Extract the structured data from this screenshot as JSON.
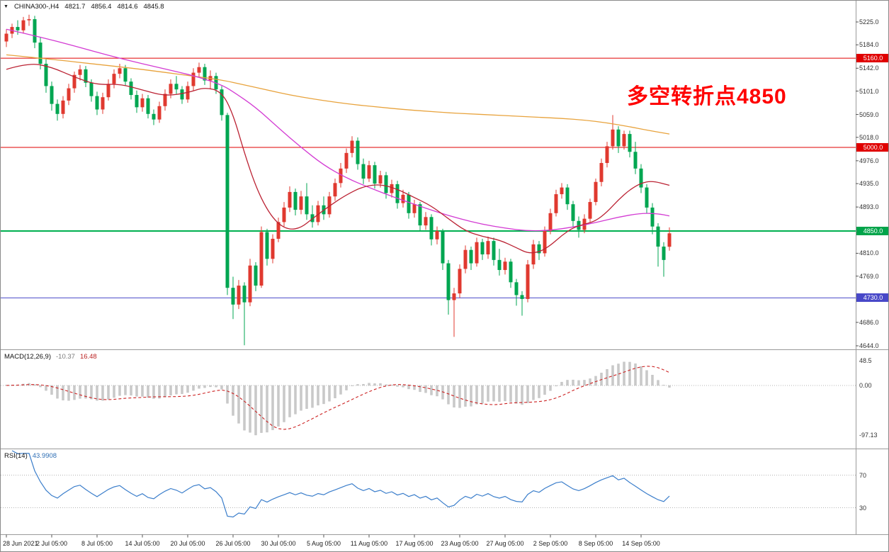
{
  "symbol_bar": {
    "symbol": "CHINA300-,H4",
    "open": "4821.7",
    "high": "4856.4",
    "low": "4814.6",
    "close": "4845.8"
  },
  "annotation": {
    "text": "多空转折点4850",
    "color": "#ff0000"
  },
  "indicators_text": {
    "macd_label": "MACD(12,26,9)",
    "macd_main": "-10.37",
    "macd_signal": "16.48",
    "rsi_label": "RSI(14)",
    "rsi_value": "43.9908"
  },
  "colors": {
    "candle_up": "#e0392f",
    "candle_down": "#00a651",
    "ma_fast": "#bb2233",
    "ma_mid": "#d33bd3",
    "ma_slow": "#e8a33d",
    "macd_hist": "#c9c9c9",
    "macd_signal": "#cc2222",
    "rsi_line": "#3b7ecb",
    "line_red": "#e00000",
    "line_green": "#00b050",
    "line_blue": "#4848c8",
    "axis_divider": "#9a9a9a"
  },
  "chart_data": {
    "type": "candlestick",
    "title": "CHINA300-,H4",
    "timeframe": "H4",
    "y_axis": {
      "range": [
        4644,
        5238
      ],
      "ticks": [
        {
          "v": 5225,
          "t": "5225.0"
        },
        {
          "v": 5184,
          "t": "5184.0"
        },
        {
          "v": 5142,
          "t": "5142.0"
        },
        {
          "v": 5101,
          "t": "5101.0"
        },
        {
          "v": 5059,
          "t": "5059.0"
        },
        {
          "v": 5018,
          "t": "5018.0"
        },
        {
          "v": 4976,
          "t": "4976.0"
        },
        {
          "v": 4935,
          "t": "4935.0"
        },
        {
          "v": 4893,
          "t": "4893.0"
        },
        {
          "v": 4810,
          "t": "4810.0"
        },
        {
          "v": 4769,
          "t": "4769.0"
        },
        {
          "v": 4686,
          "t": "4686.0"
        },
        {
          "v": 4644,
          "t": "4644.0"
        }
      ]
    },
    "x_axis": {
      "labels": [
        {
          "bar": 0,
          "t": "28 Jun 2021"
        },
        {
          "bar": 8,
          "t": "2 Jul 05:00"
        },
        {
          "bar": 16,
          "t": "8 Jul 05:00"
        },
        {
          "bar": 24,
          "t": "14 Jul 05:00"
        },
        {
          "bar": 32,
          "t": "20 Jul 05:00"
        },
        {
          "bar": 40,
          "t": "26 Jul 05:00"
        },
        {
          "bar": 48,
          "t": "30 Jul 05:00"
        },
        {
          "bar": 56,
          "t": "5 Aug 05:00"
        },
        {
          "bar": 64,
          "t": "11 Aug 05:00"
        },
        {
          "bar": 72,
          "t": "17 Aug 05:00"
        },
        {
          "bar": 80,
          "t": "23 Aug 05:00"
        },
        {
          "bar": 88,
          "t": "27 Aug 05:00"
        },
        {
          "bar": 96,
          "t": "2 Sep 05:00"
        },
        {
          "bar": 104,
          "t": "8 Sep 05:00"
        },
        {
          "bar": 112,
          "t": "14 Sep 05:00"
        }
      ]
    },
    "ohlc": [
      [
        5190,
        5212,
        5180,
        5204
      ],
      [
        5204,
        5222,
        5196,
        5216
      ],
      [
        5216,
        5228,
        5202,
        5210
      ],
      [
        5210,
        5234,
        5204,
        5228
      ],
      [
        5228,
        5238,
        5218,
        5230
      ],
      [
        5230,
        5236,
        5178,
        5188
      ],
      [
        5188,
        5198,
        5140,
        5150
      ],
      [
        5150,
        5158,
        5098,
        5110
      ],
      [
        5110,
        5118,
        5066,
        5078
      ],
      [
        5078,
        5086,
        5048,
        5060
      ],
      [
        5060,
        5092,
        5052,
        5084
      ],
      [
        5084,
        5114,
        5076,
        5106
      ],
      [
        5106,
        5136,
        5098,
        5130
      ],
      [
        5130,
        5148,
        5120,
        5140
      ],
      [
        5140,
        5146,
        5108,
        5116
      ],
      [
        5116,
        5122,
        5082,
        5092
      ],
      [
        5092,
        5100,
        5058,
        5068
      ],
      [
        5068,
        5098,
        5060,
        5090
      ],
      [
        5090,
        5122,
        5084,
        5114
      ],
      [
        5114,
        5140,
        5106,
        5132
      ],
      [
        5132,
        5150,
        5124,
        5142
      ],
      [
        5142,
        5148,
        5110,
        5118
      ],
      [
        5118,
        5124,
        5086,
        5094
      ],
      [
        5094,
        5102,
        5062,
        5072
      ],
      [
        5072,
        5096,
        5064,
        5088
      ],
      [
        5088,
        5094,
        5052,
        5060
      ],
      [
        5060,
        5068,
        5040,
        5050
      ],
      [
        5050,
        5082,
        5044,
        5074
      ],
      [
        5074,
        5104,
        5066,
        5096
      ],
      [
        5096,
        5122,
        5088,
        5114
      ],
      [
        5114,
        5128,
        5096,
        5104
      ],
      [
        5104,
        5110,
        5078,
        5086
      ],
      [
        5086,
        5118,
        5080,
        5110
      ],
      [
        5110,
        5142,
        5102,
        5134
      ],
      [
        5134,
        5152,
        5126,
        5144
      ],
      [
        5144,
        5150,
        5112,
        5120
      ],
      [
        5120,
        5138,
        5104,
        5128
      ],
      [
        5128,
        5134,
        5096,
        5104
      ],
      [
        5104,
        5110,
        5048,
        5058
      ],
      [
        5058,
        5062,
        4735,
        4748
      ],
      [
        4748,
        4768,
        4692,
        4718
      ],
      [
        4718,
        4762,
        4710,
        4752
      ],
      [
        4752,
        4758,
        4645,
        4722
      ],
      [
        4722,
        4800,
        4715,
        4788
      ],
      [
        4788,
        4794,
        4742,
        4752
      ],
      [
        4752,
        4858,
        4748,
        4848
      ],
      [
        4848,
        4854,
        4788,
        4800
      ],
      [
        4800,
        4844,
        4792,
        4836
      ],
      [
        4836,
        4874,
        4830,
        4866
      ],
      [
        4866,
        4902,
        4858,
        4892
      ],
      [
        4892,
        4930,
        4884,
        4920
      ],
      [
        4920,
        4926,
        4878,
        4888
      ],
      [
        4888,
        4922,
        4880,
        4912
      ],
      [
        4912,
        4936,
        4870,
        4880
      ],
      [
        4880,
        4896,
        4856,
        4866
      ],
      [
        4866,
        4904,
        4860,
        4896
      ],
      [
        4896,
        4912,
        4870,
        4880
      ],
      [
        4880,
        4920,
        4874,
        4912
      ],
      [
        4912,
        4944,
        4904,
        4936
      ],
      [
        4936,
        4972,
        4928,
        4962
      ],
      [
        4962,
        4998,
        4954,
        4990
      ],
      [
        4990,
        5020,
        4982,
        5012
      ],
      [
        5012,
        5018,
        4960,
        4970
      ],
      [
        4970,
        4980,
        4934,
        4944
      ],
      [
        4944,
        4976,
        4938,
        4968
      ],
      [
        4968,
        4974,
        4926,
        4935
      ],
      [
        4935,
        4958,
        4928,
        4950
      ],
      [
        4950,
        4956,
        4908,
        4918
      ],
      [
        4918,
        4942,
        4910,
        4934
      ],
      [
        4934,
        4940,
        4890,
        4900
      ],
      [
        4900,
        4924,
        4892,
        4915
      ],
      [
        4915,
        4920,
        4872,
        4882
      ],
      [
        4882,
        4906,
        4874,
        4898
      ],
      [
        4898,
        4902,
        4850,
        4860
      ],
      [
        4860,
        4884,
        4852,
        4875
      ],
      [
        4875,
        4880,
        4824,
        4835
      ],
      [
        4835,
        4858,
        4826,
        4850
      ],
      [
        4850,
        4854,
        4780,
        4792
      ],
      [
        4792,
        4798,
        4700,
        4726
      ],
      [
        4726,
        4748,
        4660,
        4738
      ],
      [
        4738,
        4790,
        4730,
        4782
      ],
      [
        4782,
        4824,
        4774,
        4816
      ],
      [
        4816,
        4822,
        4780,
        4792
      ],
      [
        4792,
        4838,
        4786,
        4830
      ],
      [
        4830,
        4836,
        4798,
        4808
      ],
      [
        4808,
        4840,
        4800,
        4832
      ],
      [
        4832,
        4838,
        4788,
        4798
      ],
      [
        4798,
        4818,
        4770,
        4780
      ],
      [
        4780,
        4802,
        4772,
        4795
      ],
      [
        4795,
        4800,
        4748,
        4758
      ],
      [
        4758,
        4764,
        4716,
        4735
      ],
      [
        4735,
        4742,
        4698,
        4728
      ],
      [
        4728,
        4798,
        4722,
        4790
      ],
      [
        4790,
        4834,
        4782,
        4826
      ],
      [
        4826,
        4832,
        4798,
        4810
      ],
      [
        4810,
        4858,
        4804,
        4850
      ],
      [
        4850,
        4890,
        4844,
        4882
      ],
      [
        4882,
        4924,
        4876,
        4916
      ],
      [
        4916,
        4936,
        4908,
        4928
      ],
      [
        4928,
        4934,
        4888,
        4898
      ],
      [
        4898,
        4904,
        4858,
        4868
      ],
      [
        4868,
        4876,
        4838,
        4852
      ],
      [
        4852,
        4880,
        4846,
        4872
      ],
      [
        4872,
        4908,
        4866,
        4902
      ],
      [
        4902,
        4944,
        4896,
        4938
      ],
      [
        4938,
        4980,
        4930,
        4972
      ],
      [
        4972,
        5010,
        4964,
        5002
      ],
      [
        5002,
        5058,
        4996,
        5032
      ],
      [
        5032,
        5038,
        4990,
        5002
      ],
      [
        5002,
        5030,
        4996,
        5024
      ],
      [
        5024,
        5030,
        4982,
        4992
      ],
      [
        4992,
        5010,
        4952,
        4962
      ],
      [
        4962,
        4970,
        4918,
        4928
      ],
      [
        4928,
        4934,
        4882,
        4892
      ],
      [
        4892,
        4900,
        4844,
        4858
      ],
      [
        4858,
        4864,
        4786,
        4822
      ],
      [
        4822,
        4830,
        4768,
        4798
      ],
      [
        4821.7,
        4856.4,
        4814.6,
        4845.8
      ]
    ],
    "overlays": {
      "hlines": [
        {
          "price": 5160,
          "color": "#e00000",
          "width": 1,
          "label": "5160.0",
          "badge": "#e00000"
        },
        {
          "price": 5000,
          "color": "#e00000",
          "width": 1,
          "label": "5000.0",
          "badge": "#e00000"
        },
        {
          "price": 4850,
          "color": "#00b050",
          "width": 2,
          "label": "4850.0",
          "badge": "#00a44a"
        },
        {
          "price": 4730,
          "color": "#4848c8",
          "width": 1,
          "label": "4730.0",
          "badge": "#4848c8"
        }
      ],
      "ma_lines": [
        {
          "name": "ma-slow-orange",
          "color": "#e8a33d",
          "points": [
            [
              0,
              5166
            ],
            [
              8,
              5158
            ],
            [
              16,
              5149
            ],
            [
              24,
              5140
            ],
            [
              32,
              5129
            ],
            [
              38,
              5121
            ],
            [
              42,
              5112
            ],
            [
              46,
              5103
            ],
            [
              50,
              5094
            ],
            [
              54,
              5087
            ],
            [
              58,
              5081
            ],
            [
              62,
              5076
            ],
            [
              66,
              5072
            ],
            [
              70,
              5068
            ],
            [
              74,
              5065
            ],
            [
              78,
              5062
            ],
            [
              82,
              5060
            ],
            [
              86,
              5058
            ],
            [
              90,
              5056
            ],
            [
              94,
              5054
            ],
            [
              98,
              5052
            ],
            [
              102,
              5049
            ],
            [
              106,
              5044
            ],
            [
              110,
              5037
            ],
            [
              113,
              5031
            ],
            [
              117,
              5024
            ]
          ]
        },
        {
          "name": "ma-mid-magenta",
          "color": "#d33bd3",
          "points": [
            [
              0,
              5212
            ],
            [
              6,
              5198
            ],
            [
              12,
              5182
            ],
            [
              18,
              5165
            ],
            [
              24,
              5150
            ],
            [
              30,
              5136
            ],
            [
              34,
              5126
            ],
            [
              38,
              5112
            ],
            [
              40,
              5100
            ],
            [
              44,
              5072
            ],
            [
              48,
              5035
            ],
            [
              52,
              5000
            ],
            [
              56,
              4968
            ],
            [
              60,
              4945
            ],
            [
              64,
              4928
            ],
            [
              68,
              4912
            ],
            [
              72,
              4898
            ],
            [
              76,
              4884
            ],
            [
              80,
              4872
            ],
            [
              84,
              4862
            ],
            [
              88,
              4855
            ],
            [
              92,
              4850
            ],
            [
              96,
              4851
            ],
            [
              100,
              4857
            ],
            [
              104,
              4865
            ],
            [
              108,
              4875
            ],
            [
              112,
              4882
            ],
            [
              115,
              4881
            ],
            [
              117,
              4877
            ]
          ]
        },
        {
          "name": "ma-fast-red",
          "color": "#bb2233",
          "points": [
            [
              0,
              5140
            ],
            [
              4,
              5152
            ],
            [
              8,
              5144
            ],
            [
              12,
              5126
            ],
            [
              16,
              5112
            ],
            [
              20,
              5114
            ],
            [
              24,
              5103
            ],
            [
              28,
              5092
            ],
            [
              32,
              5098
            ],
            [
              35,
              5108
            ],
            [
              38,
              5100
            ],
            [
              40,
              5060
            ],
            [
              42,
              4990
            ],
            [
              44,
              4930
            ],
            [
              46,
              4888
            ],
            [
              48,
              4862
            ],
            [
              50,
              4852
            ],
            [
              52,
              4856
            ],
            [
              54,
              4872
            ],
            [
              57,
              4895
            ],
            [
              60,
              4915
            ],
            [
              63,
              4930
            ],
            [
              66,
              4934
            ],
            [
              69,
              4925
            ],
            [
              72,
              4910
            ],
            [
              75,
              4895
            ],
            [
              78,
              4872
            ],
            [
              81,
              4850
            ],
            [
              84,
              4840
            ],
            [
              87,
              4834
            ],
            [
              90,
              4820
            ],
            [
              92,
              4810
            ],
            [
              94,
              4812
            ],
            [
              96,
              4824
            ],
            [
              98,
              4842
            ],
            [
              100,
              4856
            ],
            [
              102,
              4862
            ],
            [
              104,
              4868
            ],
            [
              106,
              4884
            ],
            [
              108,
              4906
            ],
            [
              110,
              4924
            ],
            [
              112,
              4936
            ],
            [
              114,
              4940
            ],
            [
              117,
              4932
            ]
          ]
        }
      ]
    },
    "indicators": {
      "macd": {
        "fast": 12,
        "slow": 26,
        "signal": 9,
        "value_main": -10.37,
        "value_signal": 16.48,
        "axis_labels": [
          {
            "v": 48.5,
            "t": "48.5"
          },
          {
            "v": 0,
            "t": "0.00"
          },
          {
            "v": -97.13,
            "t": "-97.13"
          }
        ]
      },
      "rsi": {
        "period": 14,
        "value": 43.9908,
        "levels": [
          {
            "v": 70,
            "t": "70"
          },
          {
            "v": 30,
            "t": "30"
          }
        ]
      }
    }
  }
}
